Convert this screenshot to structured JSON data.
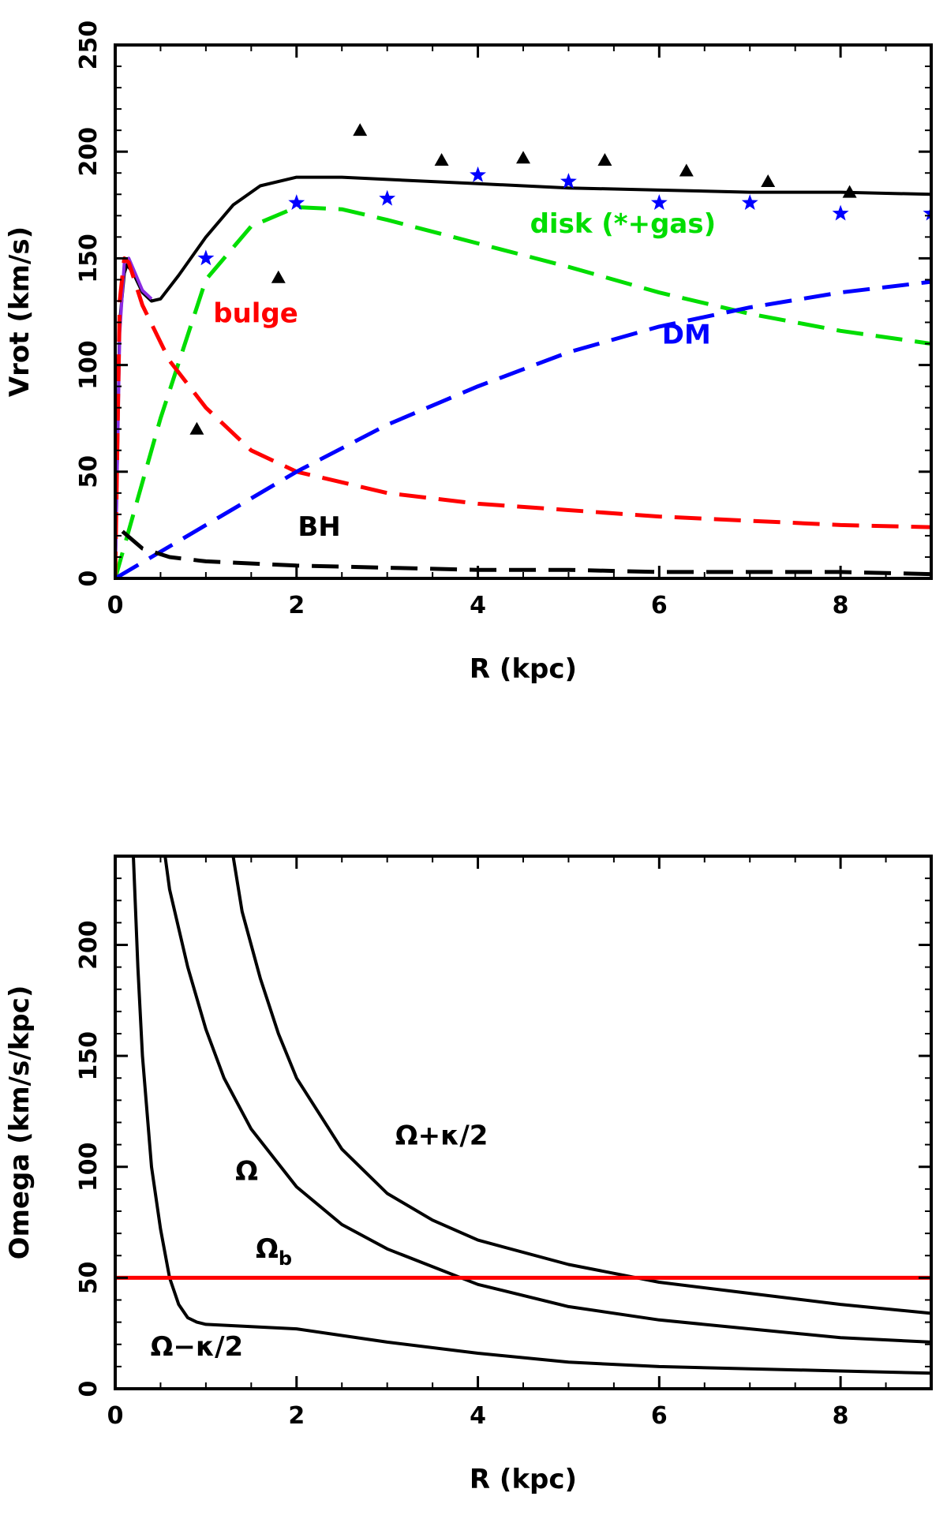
{
  "chart_data": [
    {
      "type": "line",
      "xlabel": "R (kpc)",
      "ylabel": "Vrot (km/s)",
      "xlim": [
        0,
        9
      ],
      "ylim": [
        0,
        250
      ],
      "xticks": [
        0,
        2,
        4,
        6,
        8
      ],
      "yticks": [
        0,
        50,
        100,
        150,
        200,
        250
      ],
      "series": [
        {
          "role": "total",
          "color": "#000000",
          "style": "solid",
          "x": [
            0,
            0.05,
            0.1,
            0.13,
            0.2,
            0.3,
            0.4,
            0.5,
            0.7,
            1.0,
            1.3,
            1.6,
            2.0,
            2.5,
            3.0,
            4.0,
            5.0,
            6.0,
            7.0,
            8.0,
            9.0
          ],
          "y": [
            0,
            120,
            143,
            147,
            143,
            134,
            130,
            131,
            142,
            160,
            175,
            184,
            188,
            188,
            187,
            185,
            183,
            182,
            181,
            181,
            180
          ]
        },
        {
          "role": "inner-total",
          "color": "#8a2be2",
          "style": "solid",
          "x": [
            0,
            0.05,
            0.1,
            0.15,
            0.2,
            0.3,
            0.4
          ],
          "y": [
            0,
            115,
            148,
            150,
            145,
            135,
            131
          ]
        },
        {
          "name": "disk (*+gas)",
          "color": "#00dd00",
          "style": "dashed",
          "x": [
            0,
            0.5,
            1.0,
            1.5,
            2.0,
            2.5,
            3.0,
            4.0,
            5.0,
            6.0,
            7.0,
            8.0,
            9.0
          ],
          "y": [
            0,
            75,
            140,
            165,
            174,
            173,
            168,
            157,
            146,
            134,
            124,
            116,
            110
          ]
        },
        {
          "name": "bulge",
          "color": "#ff0000",
          "style": "dashed",
          "x": [
            0,
            0.05,
            0.1,
            0.15,
            0.3,
            0.6,
            1.0,
            1.5,
            2.0,
            3.0,
            4.0,
            5.0,
            6.0,
            7.0,
            8.0,
            9.0
          ],
          "y": [
            0,
            130,
            150,
            148,
            128,
            102,
            80,
            60,
            50,
            40,
            35,
            32,
            29,
            27,
            25,
            24
          ]
        },
        {
          "name": "DM",
          "color": "#0000ff",
          "style": "dashed",
          "x": [
            0,
            1.0,
            2.0,
            3.0,
            4.0,
            5.0,
            6.0,
            7.0,
            8.0,
            9.0
          ],
          "y": [
            0,
            25,
            50,
            72,
            90,
            106,
            118,
            127,
            134,
            139
          ]
        },
        {
          "name": "BH",
          "color": "#000000",
          "style": "dashed",
          "x": [
            0.08,
            0.3,
            0.6,
            1.0,
            2.0,
            3.0,
            4.0,
            5.0,
            6.0,
            7.0,
            8.0,
            9.0
          ],
          "y": [
            22,
            14,
            10,
            8,
            6,
            5,
            4,
            4,
            3,
            3,
            3,
            2
          ]
        }
      ],
      "points": [
        {
          "marker": "triangle",
          "color": "#000000",
          "x": [
            0.9,
            1.8,
            2.7,
            3.6,
            4.5,
            5.4,
            6.3,
            7.2,
            8.1
          ],
          "y": [
            70,
            141,
            210,
            196,
            197,
            196,
            191,
            186,
            181
          ]
        },
        {
          "marker": "star",
          "color": "#0000ff",
          "x": [
            1.0,
            2.0,
            3.0,
            4.0,
            5.0,
            6.0,
            7.0,
            8.0,
            9.0
          ],
          "y": [
            150,
            176,
            178,
            189,
            186,
            176,
            176,
            171,
            171
          ]
        }
      ],
      "annotations": [
        {
          "text": "disk (*+gas)",
          "color": "#00dd00",
          "x": 5.6,
          "y": 162
        },
        {
          "text": "bulge",
          "color": "#ff0000",
          "x": 1.55,
          "y": 120
        },
        {
          "text": "DM",
          "color": "#0000ff",
          "x": 6.3,
          "y": 110
        },
        {
          "text": "BH",
          "color": "#000000",
          "x": 2.25,
          "y": 20
        }
      ]
    },
    {
      "type": "line",
      "xlabel": "R (kpc)",
      "ylabel": "Omega (km/s/kpc)",
      "xlim": [
        0,
        9
      ],
      "ylim": [
        0,
        240
      ],
      "xticks": [
        0,
        2,
        4,
        6,
        8
      ],
      "yticks": [
        0,
        50,
        100,
        150,
        200
      ],
      "series": [
        {
          "role": "Omega+kappa/2",
          "color": "#000000",
          "style": "solid",
          "x": [
            1.3,
            1.4,
            1.6,
            1.8,
            2.0,
            2.5,
            3.0,
            3.5,
            4.0,
            5.0,
            6.0,
            7.0,
            8.0,
            9.0
          ],
          "y": [
            240,
            215,
            185,
            160,
            140,
            108,
            88,
            76,
            67,
            56,
            48,
            43,
            38,
            34
          ]
        },
        {
          "role": "Omega",
          "color": "#000000",
          "style": "solid",
          "x": [
            0.55,
            0.6,
            0.8,
            1.0,
            1.2,
            1.5,
            2.0,
            2.5,
            3.0,
            4.0,
            5.0,
            6.0,
            7.0,
            8.0,
            9.0
          ],
          "y": [
            240,
            225,
            190,
            162,
            140,
            117,
            91,
            74,
            63,
            47,
            37,
            31,
            27,
            23,
            21
          ]
        },
        {
          "role": "Omega-kappa/2",
          "color": "#000000",
          "style": "solid",
          "x": [
            0.2,
            0.25,
            0.3,
            0.4,
            0.5,
            0.6,
            0.7,
            0.8,
            0.9,
            1.0,
            1.5,
            2.0,
            2.5,
            3.0,
            4.0,
            5.0,
            6.0,
            7.0,
            8.0,
            9.0
          ],
          "y": [
            240,
            190,
            150,
            100,
            72,
            50,
            38,
            32,
            30,
            29,
            28,
            27,
            24,
            21,
            16,
            12,
            10,
            9,
            8,
            7
          ]
        },
        {
          "role": "Omega_b",
          "color": "#ff0000",
          "style": "solid",
          "x": [
            0,
            9
          ],
          "y": [
            50,
            50
          ]
        }
      ],
      "annotations": [
        {
          "text": "Ω+κ/2",
          "color": "#000000",
          "x": 3.6,
          "y": 110
        },
        {
          "text": "Ω",
          "color": "#000000",
          "x": 1.45,
          "y": 94
        },
        {
          "text": "Ω",
          "sub": "b",
          "color": "#000000",
          "x": 1.75,
          "y": 59
        },
        {
          "text": "Ω−κ/2",
          "color": "#000000",
          "x": 0.9,
          "y": 15
        }
      ]
    }
  ]
}
